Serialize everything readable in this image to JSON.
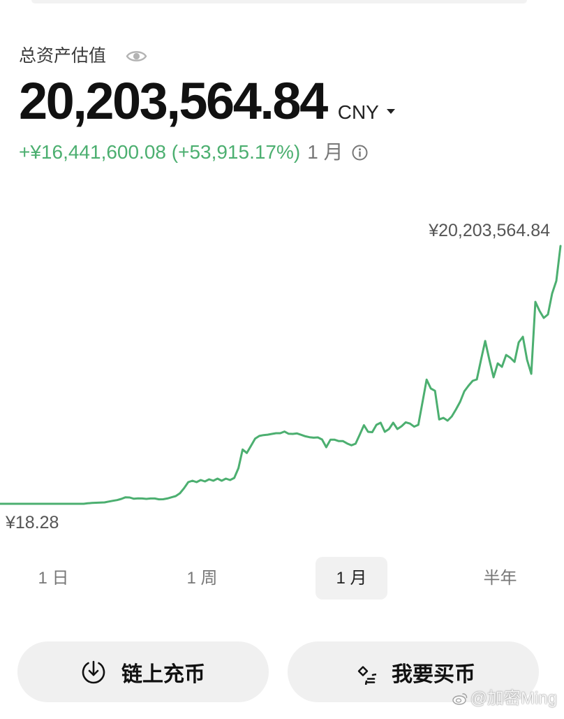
{
  "header": {
    "label": "总资产估值",
    "visibility_icon": "eye-icon"
  },
  "balance": {
    "amount": "20,203,564.84",
    "currency": "CNY",
    "currency_dropdown_icon": "caret-down-icon"
  },
  "change": {
    "text": "+¥16,441,600.08 (+53,915.17%)",
    "period": "1 月",
    "info_icon": "info-icon"
  },
  "colors": {
    "gain": "#4caf70",
    "selected_tab_bg": "#f1f1f1",
    "button_bg": "#f0f0f0"
  },
  "chart_data": {
    "type": "line",
    "max_label": "¥20,203,564.84",
    "min_label": "¥18.28",
    "line_color": "#4caf70",
    "grid": false,
    "series": [
      {
        "values": [
          18.28,
          18.28,
          18.28,
          18.28,
          18.28,
          18.28,
          18.28,
          18.28,
          18.28,
          18.28,
          18.28,
          18.28,
          18.28,
          18.28,
          18.28,
          18.28,
          18.28,
          18.28,
          18.28,
          18.28,
          18.28,
          41000,
          66000,
          82000,
          93000,
          110000,
          175000,
          235000,
          290000,
          383000,
          509000,
          493000,
          394000,
          427000,
          416000,
          383000,
          416000,
          416000,
          350000,
          356000,
          416000,
          509000,
          602000,
          821000,
          1221000,
          1697000,
          1807000,
          1697000,
          1862000,
          1752000,
          1916000,
          1807000,
          1971000,
          1807000,
          1971000,
          1862000,
          2026000,
          2792000,
          4254000,
          3981000,
          4544000,
          5103000,
          5316000,
          5382000,
          5415000,
          5475000,
          5530000,
          5530000,
          5661000,
          5486000,
          5475000,
          5516000,
          5404000,
          5289000,
          5218000,
          5180000,
          5201000,
          5037000,
          4435000,
          5021000,
          5021000,
          4911000,
          4911000,
          4725000,
          4583000,
          4709000,
          5420000,
          6160000,
          5639000,
          5612000,
          6187000,
          6351000,
          5639000,
          5858000,
          6351000,
          5858000,
          6078000,
          6384000,
          6286000,
          6045000,
          6187000,
          7939000,
          9729000,
          9034000,
          8853000,
          6609000,
          6735000,
          6516000,
          6844000,
          7392000,
          7994000,
          8815000,
          9253000,
          9636000,
          9746000,
          11279000,
          12757000,
          11279000,
          9910000,
          11005000,
          10731000,
          11662000,
          11443000,
          11115000,
          12648000,
          13086000,
          11279000,
          10184000,
          15823000,
          15112000,
          14564000,
          14838000,
          16480000,
          17466000,
          20203564.84
        ]
      }
    ]
  },
  "time_range": {
    "options": [
      "1 日",
      "1 周",
      "1 月",
      "半年"
    ],
    "selected": "1 月"
  },
  "actions": [
    {
      "label": "链上充币",
      "icon": "download-circle-icon"
    },
    {
      "label": "我要买币",
      "icon": "buy-coin-icon"
    }
  ],
  "watermark": {
    "text": "@加密Ming",
    "icon": "weibo-icon"
  }
}
